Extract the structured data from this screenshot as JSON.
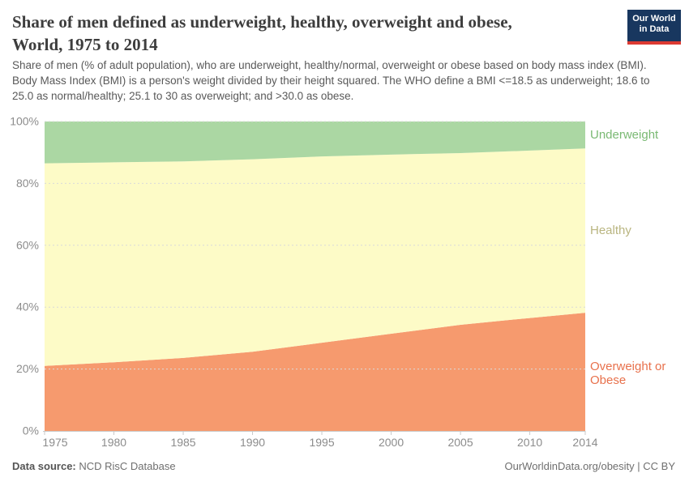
{
  "header": {
    "title_lines": [
      "Share of men defined as underweight, healthy, overweight and obese,",
      "World, 1975 to 2014"
    ],
    "subtitle": "Share of men (% of adult population), who are underweight, healthy/normal, overweight or obese based on body mass index (BMI). Body Mass Index (BMI) is a person's weight divided by their height squared. The WHO define a BMI <=18.5 as underweight; 18.6 to 25.0 as normal/healthy; 25.1 to 30 as overweight; and >30.0 as obese.",
    "logo": {
      "line1": "Our World",
      "line2": "in Data",
      "bg_color": "#18375f",
      "accent_color": "#dc3a32"
    }
  },
  "chart_data": {
    "type": "area",
    "stacked": true,
    "title": "Share of men defined as underweight, healthy, overweight and obese, World, 1975 to 2014",
    "xlabel": "",
    "ylabel": "",
    "xlim": [
      1975,
      2014
    ],
    "ylim": [
      0,
      100
    ],
    "grid": "horizontal-dashed",
    "legend_position": "right-edge-labels",
    "x": [
      1975,
      1980,
      1985,
      1990,
      1995,
      2000,
      2005,
      2010,
      2014
    ],
    "x_tick_labels": [
      "1975",
      "1980",
      "1985",
      "1990",
      "1995",
      "2000",
      "2005",
      "2010",
      "2014"
    ],
    "y_ticks": [
      0,
      20,
      40,
      60,
      80,
      100
    ],
    "y_tick_labels": [
      "0%",
      "20%",
      "40%",
      "60%",
      "80%",
      "100%"
    ],
    "series": [
      {
        "name": "Overweight or Obese",
        "label_lines": [
          "Overweight or",
          "Obese"
        ],
        "color": "#f69a6e",
        "label_color": "#e8714c",
        "values": [
          21.0,
          22.2,
          23.6,
          25.6,
          28.5,
          31.4,
          34.3,
          36.5,
          38.2
        ]
      },
      {
        "name": "Healthy",
        "label_lines": [
          "Healthy"
        ],
        "color": "#fdfbc7",
        "label_color": "#b9b580",
        "values": [
          65.5,
          64.6,
          63.5,
          62.2,
          60.2,
          57.9,
          55.5,
          54.1,
          53.1
        ]
      },
      {
        "name": "Underweight",
        "label_lines": [
          "Underweight"
        ],
        "color": "#abd7a3",
        "label_color": "#7ab973",
        "values": [
          13.5,
          13.2,
          12.9,
          12.2,
          11.3,
          10.7,
          10.2,
          9.4,
          8.7
        ]
      }
    ]
  },
  "footer": {
    "source_label": "Data source:",
    "source_value": " NCD RisC Database",
    "attribution": "OurWorldinData.org/obesity | CC BY"
  }
}
